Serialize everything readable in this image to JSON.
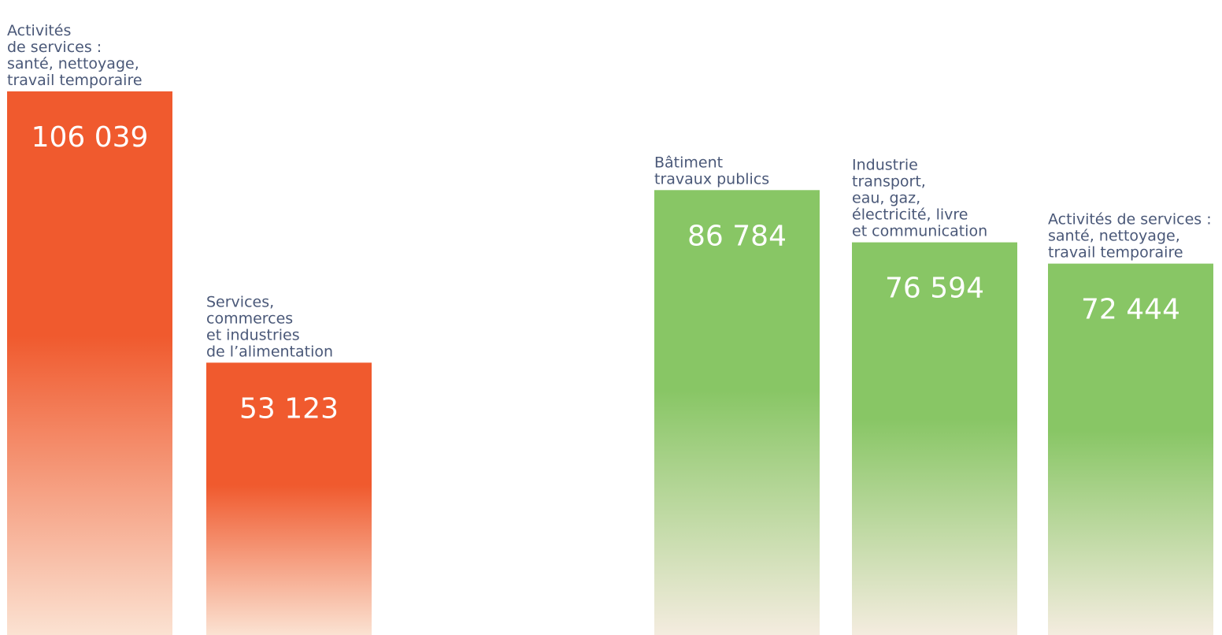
{
  "colors": {
    "orange": "#f05a2e",
    "orange_fade": "#fbe2d2",
    "green": "#88c665",
    "green_fade": "#f4ecdf",
    "label": "#4a5878",
    "value_text": "#ffffff"
  },
  "chart_data": {
    "type": "bar",
    "ylim": [
      0,
      106039
    ],
    "grid": false,
    "legend": "none",
    "groups": [
      {
        "color": "orange",
        "bars": [
          {
            "label_lines": [
              "Activités",
              "de services :",
              "santé, nettoyage,",
              "travail temporaire"
            ],
            "value": 106039,
            "value_label": "106 039"
          },
          {
            "label_lines": [
              "Services,",
              "commerces",
              "et industries",
              "de l’alimentation"
            ],
            "value": 53123,
            "value_label": "53 123"
          }
        ]
      },
      {
        "color": "green",
        "bars": [
          {
            "label_lines": [
              "Bâtiment",
              "travaux publics"
            ],
            "value": 86784,
            "value_label": "86 784"
          },
          {
            "label_lines": [
              "Industrie",
              "transport,",
              "eau, gaz,",
              "électricité, livre",
              "et communication"
            ],
            "value": 76594,
            "value_label": "76 594"
          },
          {
            "label_lines": [
              "Activités de services :",
              "santé, nettoyage,",
              "travail temporaire"
            ],
            "value": 72444,
            "value_label": "72 444"
          }
        ]
      }
    ]
  }
}
